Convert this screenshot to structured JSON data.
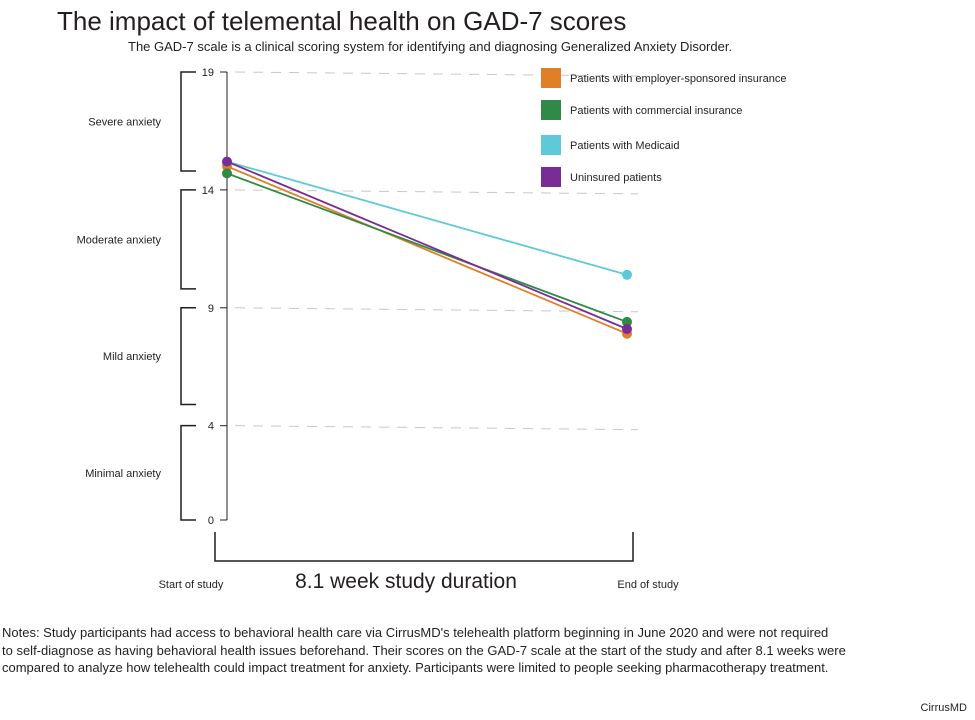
{
  "title": "The impact of telemental health on GAD-7 scores",
  "subtitle": "The GAD-7 scale is a clinical scoring system for identifying and diagnosing Generalized Anxiety Disorder.",
  "notes": [
    "Notes: Study participants had access to behavioral health care via CirrusMD's telehealth platform beginning in June 2020 and were not required",
    "to self-diagnose as having behavioral health issues beforehand. Their scores on the GAD-7 scale at the start of the study and after 8.1 weeks were",
    "compared to analyze how telehealth could impact treatment for anxiety.  Participants were limited to  people seeking pharmacotherapy treatment."
  ],
  "source": "CirrusMD",
  "chart_data": {
    "type": "line",
    "categories": [
      "Start of study",
      "End of study"
    ],
    "xlabel": "8.1 week study duration",
    "ylim": [
      0,
      19
    ],
    "yticks": [
      0,
      4,
      9,
      14,
      19
    ],
    "grid": true,
    "legend_position": "top-right",
    "severity_bands": [
      {
        "label": "Severe anxiety",
        "range": [
          14.8,
          19
        ]
      },
      {
        "label": "Moderate anxiety",
        "range": [
          9.8,
          14
        ]
      },
      {
        "label": "Mild anxiety",
        "range": [
          4.9,
          9
        ]
      },
      {
        "label": "Minimal anxiety",
        "range": [
          0,
          4
        ]
      }
    ],
    "series": [
      {
        "name": "Patients with employer-sponsored insurance",
        "color": "#e07f25",
        "values": [
          15.0,
          7.9
        ]
      },
      {
        "name": "Patients with commercial insurance",
        "color": "#2e8a45",
        "values": [
          14.7,
          8.4
        ]
      },
      {
        "name": "Patients with Medicaid",
        "color": "#5ecad9",
        "values": [
          15.2,
          10.4
        ]
      },
      {
        "name": "Uninsured patients",
        "color": "#7a2c96",
        "values": [
          15.2,
          8.1
        ]
      }
    ]
  }
}
